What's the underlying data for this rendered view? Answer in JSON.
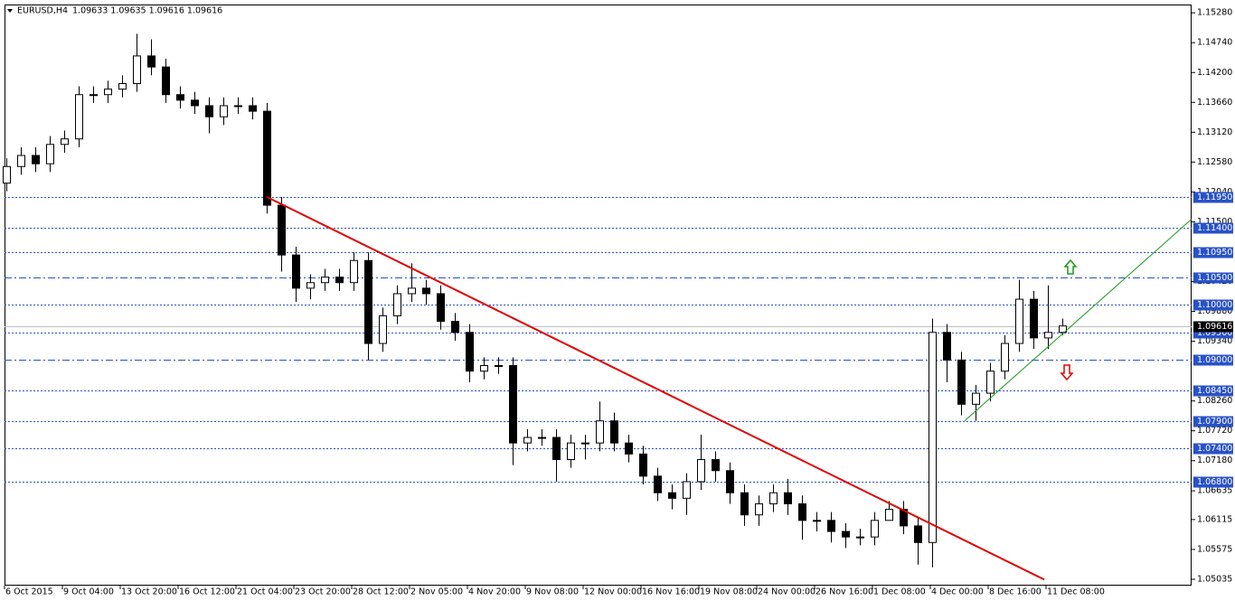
{
  "chart_data": {
    "type": "candlestick",
    "title": "EURUSD,H4",
    "subtitle": "1.09633 1.09635 1.09616 1.09616",
    "ylim": [
      1.0492,
      1.1543
    ],
    "yticks": [
      {
        "value": 1.1528,
        "label": "1.15280"
      },
      {
        "value": 1.1474,
        "label": "1.14740"
      },
      {
        "value": 1.142,
        "label": "1.14200"
      },
      {
        "value": 1.1366,
        "label": "1.13660"
      },
      {
        "value": 1.1312,
        "label": "1.13120"
      },
      {
        "value": 1.1258,
        "label": "1.12580"
      },
      {
        "value": 1.1204,
        "label": "1.12040"
      },
      {
        "value": 1.115,
        "label": "1.11500"
      },
      {
        "value": 1.1042,
        "label": "1.10420"
      },
      {
        "value": 1.0988,
        "label": "1.09880"
      },
      {
        "value": 1.0934,
        "label": "1.09340"
      },
      {
        "value": 1.0826,
        "label": "1.08260"
      },
      {
        "value": 1.0772,
        "label": "1.07720"
      },
      {
        "value": 1.0718,
        "label": "1.07180"
      },
      1.06635,
      1.06115,
      1.05575,
      1.05035
    ],
    "x_labels": [
      "6 Oct 2015",
      "9 Oct 04:00",
      "13 Oct 20:00",
      "16 Oct 12:00",
      "21 Oct 04:00",
      "23 Oct 20:00",
      "28 Oct 12:00",
      "2 Nov 05:00",
      "4 Nov 20:00",
      "9 Nov 08:00",
      "12 Nov 00:00",
      "16 Nov 16:00",
      "19 Nov 08:00",
      "24 Nov 00:00",
      "26 Nov 16:00",
      "1 Dec 08:00",
      "4 Dec 00:00",
      "8 Dec 16:00",
      "11 Dec 08:00"
    ],
    "open": [
      1.122,
      1.125,
      1.127,
      1.1255,
      1.129,
      1.13,
      1.138,
      1.138,
      1.139,
      1.14,
      1.145,
      1.143,
      1.138,
      1.137,
      1.136,
      1.134,
      1.136,
      1.136,
      1.135,
      1.118,
      1.109,
      1.103,
      1.104,
      1.105,
      1.104,
      1.108,
      1.093,
      1.098,
      1.102,
      1.103,
      1.102,
      1.097,
      1.095,
      1.088,
      1.089,
      1.089,
      1.075,
      1.076,
      1.076,
      1.072,
      1.075,
      1.075,
      1.079,
      1.075,
      1.073,
      1.069,
      1.066,
      1.065,
      1.068,
      1.072,
      1.07,
      1.066,
      1.062,
      1.064,
      1.066,
      1.064,
      1.061,
      1.061,
      1.059,
      1.058,
      1.058,
      1.061,
      1.063,
      1.06,
      1.057,
      1.095,
      1.09,
      1.082,
      1.084,
      1.088,
      1.093,
      1.101,
      1.094,
      1.095
    ],
    "high": [
      1.1265,
      1.1285,
      1.1285,
      1.1305,
      1.1315,
      1.1395,
      1.1395,
      1.1405,
      1.1415,
      1.149,
      1.148,
      1.1445,
      1.1395,
      1.1385,
      1.1375,
      1.1375,
      1.1375,
      1.1375,
      1.1365,
      1.1195,
      1.1105,
      1.1055,
      1.1065,
      1.1065,
      1.1095,
      1.1095,
      1.0995,
      1.1035,
      1.1075,
      1.1045,
      1.1035,
      1.0985,
      1.0965,
      1.0905,
      1.0905,
      1.0905,
      1.0775,
      1.0775,
      1.0775,
      1.0765,
      1.0765,
      1.0825,
      1.0805,
      1.0765,
      1.0745,
      1.0705,
      1.0675,
      1.0695,
      1.0765,
      1.0735,
      1.0715,
      1.0675,
      1.0655,
      1.0675,
      1.0685,
      1.0655,
      1.0625,
      1.0625,
      1.0605,
      1.0595,
      1.0625,
      1.0645,
      1.0645,
      1.0615,
      1.0975,
      1.0965,
      1.0915,
      1.0855,
      1.0895,
      1.0945,
      1.1045,
      1.1025,
      1.1035,
      1.0975
    ],
    "low": [
      1.1205,
      1.1235,
      1.124,
      1.124,
      1.1275,
      1.1285,
      1.1365,
      1.1365,
      1.1375,
      1.1385,
      1.1415,
      1.1365,
      1.1355,
      1.1345,
      1.131,
      1.1325,
      1.1345,
      1.1335,
      1.1165,
      1.106,
      1.1005,
      1.101,
      1.1025,
      1.1025,
      1.1025,
      1.09,
      1.0915,
      1.0965,
      1.1005,
      1.1,
      1.0955,
      1.0935,
      1.086,
      1.0865,
      1.0875,
      1.071,
      1.0735,
      1.0745,
      1.068,
      1.0705,
      1.072,
      1.0735,
      1.0735,
      1.0715,
      1.0675,
      1.0645,
      1.063,
      1.062,
      1.0665,
      1.068,
      1.064,
      1.06,
      1.06,
      1.0625,
      1.062,
      1.0575,
      1.059,
      1.057,
      1.056,
      1.0565,
      1.0565,
      1.061,
      1.0585,
      1.053,
      1.0525,
      1.086,
      1.08,
      1.079,
      1.0825,
      1.0865,
      1.0915,
      1.092,
      1.092,
      1.0945
    ],
    "close": [
      1.125,
      1.127,
      1.1255,
      1.129,
      1.13,
      1.138,
      1.138,
      1.139,
      1.14,
      1.145,
      1.143,
      1.138,
      1.137,
      1.136,
      1.134,
      1.136,
      1.136,
      1.135,
      1.118,
      1.109,
      1.103,
      1.104,
      1.105,
      1.104,
      1.108,
      1.093,
      1.098,
      1.102,
      1.103,
      1.102,
      1.097,
      1.095,
      1.088,
      1.089,
      1.089,
      1.075,
      1.076,
      1.076,
      1.072,
      1.075,
      1.075,
      1.079,
      1.075,
      1.073,
      1.069,
      1.066,
      1.065,
      1.068,
      1.072,
      1.07,
      1.066,
      1.062,
      1.064,
      1.066,
      1.064,
      1.061,
      1.061,
      1.059,
      1.058,
      1.058,
      1.061,
      1.063,
      1.06,
      1.057,
      1.095,
      1.09,
      1.082,
      1.084,
      1.088,
      1.093,
      1.101,
      1.094,
      1.095,
      1.09616
    ],
    "levels": [
      {
        "value": 1.1195,
        "label": "1.11950"
      },
      {
        "value": 1.114,
        "label": "1.11400"
      },
      {
        "value": 1.1095,
        "label": "1.10950"
      },
      {
        "value": 1.105,
        "label": "1.10500"
      },
      {
        "value": 1.1,
        "label": "1.10000"
      },
      {
        "value": 1.095,
        "label": "1.09500"
      },
      {
        "value": 1.09,
        "label": "1.09000"
      },
      {
        "value": 1.0845,
        "label": "1.08450"
      },
      {
        "value": 1.079,
        "label": "1.07900"
      },
      {
        "value": 1.074,
        "label": "1.07400"
      },
      {
        "value": 1.068,
        "label": "1.06800"
      }
    ],
    "dash_dot_levels": [
      1.105,
      1.09
    ],
    "level_color": "#2952c8",
    "current_price": 1.09616,
    "trendlines": [
      {
        "color": "#e00000",
        "from": [
          18,
          1.1195
        ],
        "to": [
          71.75,
          1.0503
        ]
      },
      {
        "color": "#1a9a1a",
        "from": [
          66.25,
          1.079
        ],
        "to": [
          81.94,
          1.1155
        ]
      }
    ]
  }
}
